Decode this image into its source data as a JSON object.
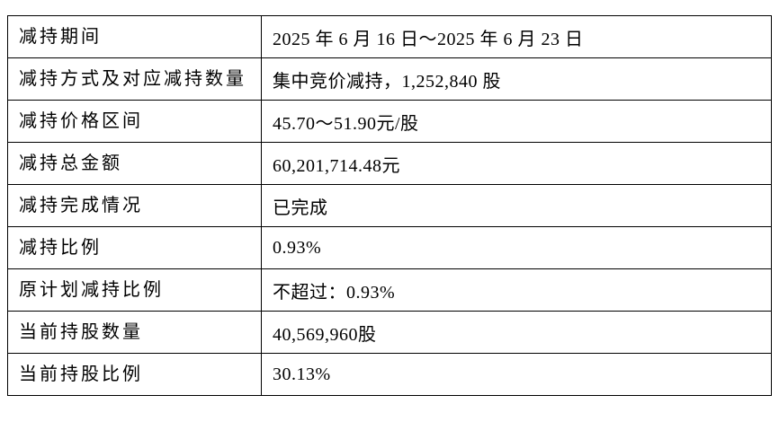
{
  "table": {
    "rows": [
      [
        "减持期间",
        "2025 年 6 月 16 日～2025 年 6 月 23 日"
      ],
      [
        "减持方式及对应减持数量",
        "集中竞价减持，1,252,840 股"
      ],
      [
        "减持价格区间",
        "45.70～51.90元/股"
      ],
      [
        "减持总金额",
        "60,201,714.48元"
      ],
      [
        "减持完成情况",
        "已完成"
      ],
      [
        "减持比例",
        "0.93%"
      ],
      [
        "原计划减持比例",
        "不超过：0.93%"
      ],
      [
        "当前持股数量",
        "40,569,960股"
      ],
      [
        "当前持股比例",
        "30.13%"
      ]
    ]
  }
}
